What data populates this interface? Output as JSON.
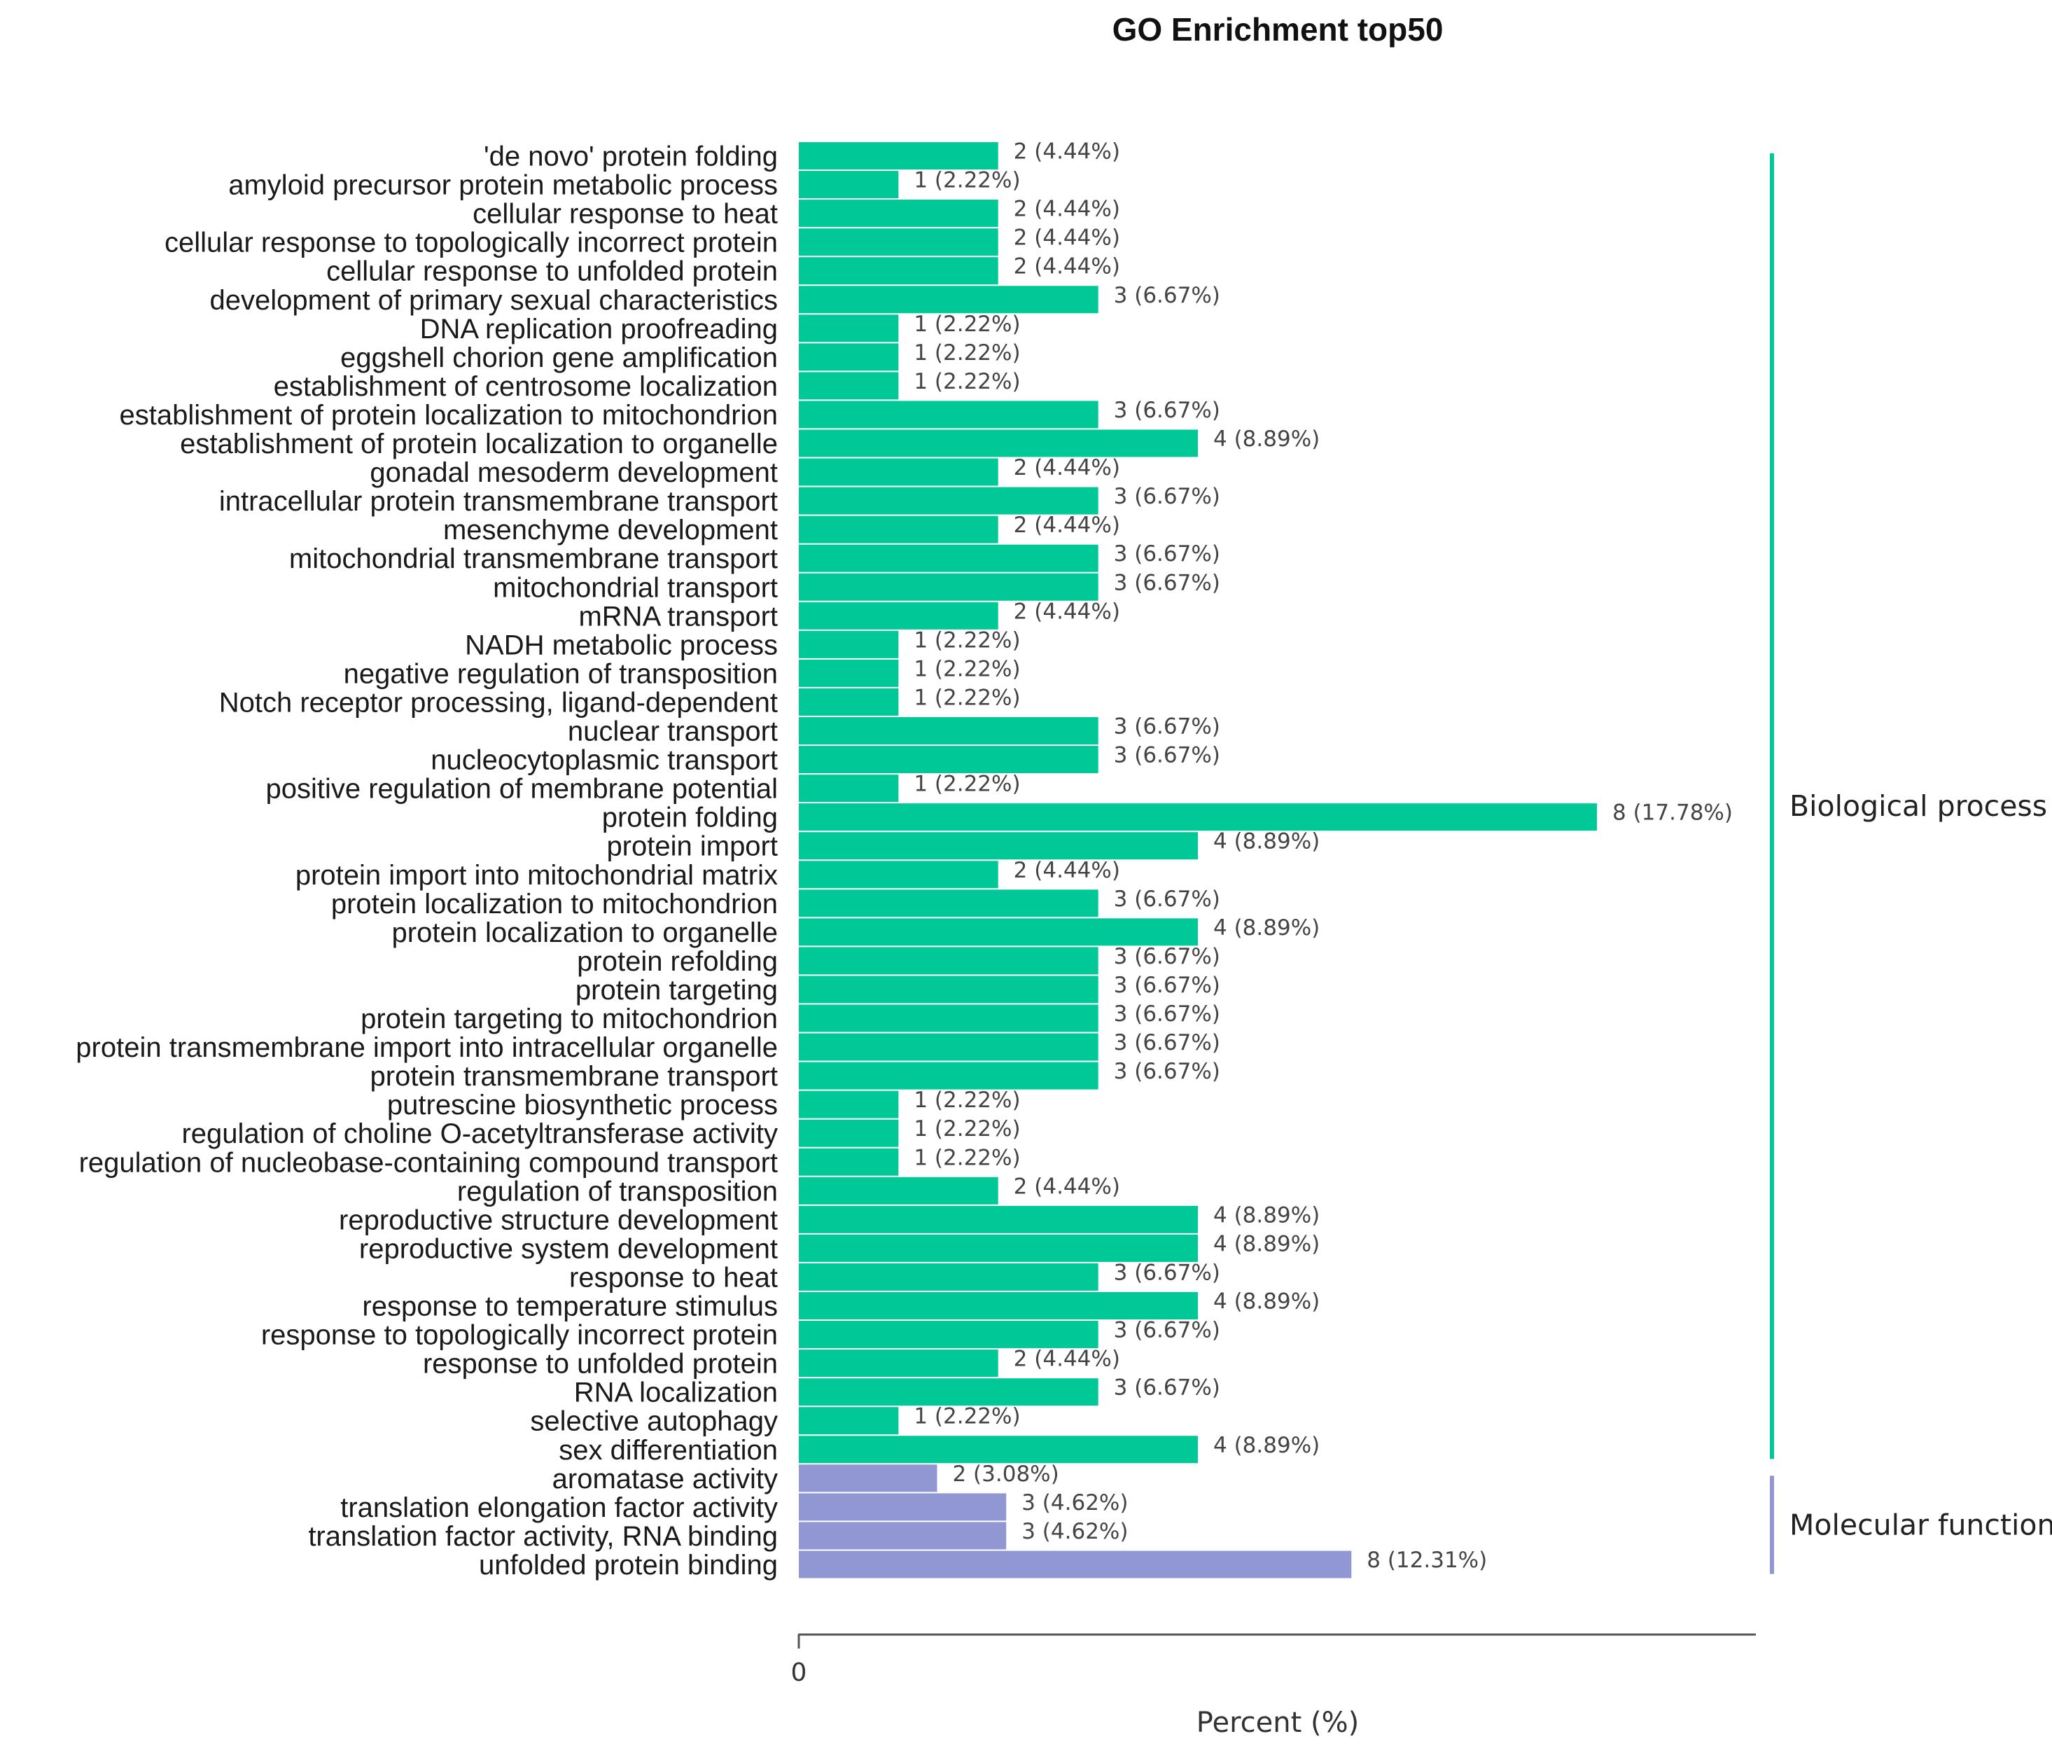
{
  "chart_data": {
    "type": "bar",
    "orientation": "horizontal",
    "title": "GO Enrichment top50",
    "xlabel": "Percent (%)",
    "ylabel": "",
    "x_tick_labels": [
      "0"
    ],
    "xlim": [
      0,
      17.78
    ],
    "colors": {
      "Biological process": "#00c896",
      "Molecular function": "#9097d3"
    },
    "groups": [
      {
        "name": "Biological process",
        "color": "#00c896",
        "items": [
          {
            "term": "'de novo' protein folding",
            "count": 2,
            "percent": 4.44,
            "label": "2 (4.44%)"
          },
          {
            "term": "amyloid precursor protein metabolic process",
            "count": 1,
            "percent": 2.22,
            "label": "1 (2.22%)"
          },
          {
            "term": "cellular response to heat",
            "count": 2,
            "percent": 4.44,
            "label": "2 (4.44%)"
          },
          {
            "term": "cellular response to topologically incorrect protein",
            "count": 2,
            "percent": 4.44,
            "label": "2 (4.44%)"
          },
          {
            "term": "cellular response to unfolded protein",
            "count": 2,
            "percent": 4.44,
            "label": "2 (4.44%)"
          },
          {
            "term": "development of primary sexual characteristics",
            "count": 3,
            "percent": 6.67,
            "label": "3 (6.67%)"
          },
          {
            "term": "DNA replication proofreading",
            "count": 1,
            "percent": 2.22,
            "label": "1 (2.22%)"
          },
          {
            "term": "eggshell chorion gene amplification",
            "count": 1,
            "percent": 2.22,
            "label": "1 (2.22%)"
          },
          {
            "term": "establishment of centrosome localization",
            "count": 1,
            "percent": 2.22,
            "label": "1 (2.22%)"
          },
          {
            "term": "establishment of protein localization to mitochondrion",
            "count": 3,
            "percent": 6.67,
            "label": "3 (6.67%)"
          },
          {
            "term": "establishment of protein localization to organelle",
            "count": 4,
            "percent": 8.89,
            "label": "4 (8.89%)"
          },
          {
            "term": "gonadal mesoderm development",
            "count": 2,
            "percent": 4.44,
            "label": "2 (4.44%)"
          },
          {
            "term": "intracellular protein transmembrane transport",
            "count": 3,
            "percent": 6.67,
            "label": "3 (6.67%)"
          },
          {
            "term": "mesenchyme development",
            "count": 2,
            "percent": 4.44,
            "label": "2 (4.44%)"
          },
          {
            "term": "mitochondrial transmembrane transport",
            "count": 3,
            "percent": 6.67,
            "label": "3 (6.67%)"
          },
          {
            "term": "mitochondrial transport",
            "count": 3,
            "percent": 6.67,
            "label": "3 (6.67%)"
          },
          {
            "term": "mRNA transport",
            "count": 2,
            "percent": 4.44,
            "label": "2 (4.44%)"
          },
          {
            "term": "NADH metabolic process",
            "count": 1,
            "percent": 2.22,
            "label": "1 (2.22%)"
          },
          {
            "term": "negative regulation of transposition",
            "count": 1,
            "percent": 2.22,
            "label": "1 (2.22%)"
          },
          {
            "term": "Notch receptor processing, ligand-dependent",
            "count": 1,
            "percent": 2.22,
            "label": "1 (2.22%)"
          },
          {
            "term": "nuclear transport",
            "count": 3,
            "percent": 6.67,
            "label": "3 (6.67%)"
          },
          {
            "term": "nucleocytoplasmic transport",
            "count": 3,
            "percent": 6.67,
            "label": "3 (6.67%)"
          },
          {
            "term": "positive regulation of membrane potential",
            "count": 1,
            "percent": 2.22,
            "label": "1 (2.22%)"
          },
          {
            "term": "protein folding",
            "count": 8,
            "percent": 17.78,
            "label": "8 (17.78%)"
          },
          {
            "term": "protein import",
            "count": 4,
            "percent": 8.89,
            "label": "4 (8.89%)"
          },
          {
            "term": "protein import into mitochondrial matrix",
            "count": 2,
            "percent": 4.44,
            "label": "2 (4.44%)"
          },
          {
            "term": "protein localization to mitochondrion",
            "count": 3,
            "percent": 6.67,
            "label": "3 (6.67%)"
          },
          {
            "term": "protein localization to organelle",
            "count": 4,
            "percent": 8.89,
            "label": "4 (8.89%)"
          },
          {
            "term": "protein refolding",
            "count": 3,
            "percent": 6.67,
            "label": "3 (6.67%)"
          },
          {
            "term": "protein targeting",
            "count": 3,
            "percent": 6.67,
            "label": "3 (6.67%)"
          },
          {
            "term": "protein targeting to mitochondrion",
            "count": 3,
            "percent": 6.67,
            "label": "3 (6.67%)"
          },
          {
            "term": "protein transmembrane import into intracellular organelle",
            "count": 3,
            "percent": 6.67,
            "label": "3 (6.67%)"
          },
          {
            "term": "protein transmembrane transport",
            "count": 3,
            "percent": 6.67,
            "label": "3 (6.67%)"
          },
          {
            "term": "putrescine biosynthetic process",
            "count": 1,
            "percent": 2.22,
            "label": "1 (2.22%)"
          },
          {
            "term": "regulation of choline O-acetyltransferase activity",
            "count": 1,
            "percent": 2.22,
            "label": "1 (2.22%)"
          },
          {
            "term": "regulation of nucleobase-containing compound transport",
            "count": 1,
            "percent": 2.22,
            "label": "1 (2.22%)"
          },
          {
            "term": "regulation of transposition",
            "count": 2,
            "percent": 4.44,
            "label": "2 (4.44%)"
          },
          {
            "term": "reproductive structure development",
            "count": 4,
            "percent": 8.89,
            "label": "4 (8.89%)"
          },
          {
            "term": "reproductive system development",
            "count": 4,
            "percent": 8.89,
            "label": "4 (8.89%)"
          },
          {
            "term": "response to heat",
            "count": 3,
            "percent": 6.67,
            "label": "3 (6.67%)"
          },
          {
            "term": "response to temperature stimulus",
            "count": 4,
            "percent": 8.89,
            "label": "4 (8.89%)"
          },
          {
            "term": "response to topologically incorrect protein",
            "count": 3,
            "percent": 6.67,
            "label": "3 (6.67%)"
          },
          {
            "term": "response to unfolded protein",
            "count": 2,
            "percent": 4.44,
            "label": "2 (4.44%)"
          },
          {
            "term": "RNA localization",
            "count": 3,
            "percent": 6.67,
            "label": "3 (6.67%)"
          },
          {
            "term": "selective autophagy",
            "count": 1,
            "percent": 2.22,
            "label": "1 (2.22%)"
          },
          {
            "term": "sex differentiation",
            "count": 4,
            "percent": 8.89,
            "label": "4 (8.89%)"
          }
        ]
      },
      {
        "name": "Molecular function",
        "color": "#9097d3",
        "items": [
          {
            "term": "aromatase activity",
            "count": 2,
            "percent": 3.08,
            "label": "2 (3.08%)"
          },
          {
            "term": "translation elongation factor activity",
            "count": 3,
            "percent": 4.62,
            "label": "3 (4.62%)"
          },
          {
            "term": "translation factor activity, RNA binding",
            "count": 3,
            "percent": 4.62,
            "label": "3 (4.62%)"
          },
          {
            "term": "unfolded protein binding",
            "count": 8,
            "percent": 12.31,
            "label": "8 (12.31%)"
          }
        ]
      }
    ]
  }
}
